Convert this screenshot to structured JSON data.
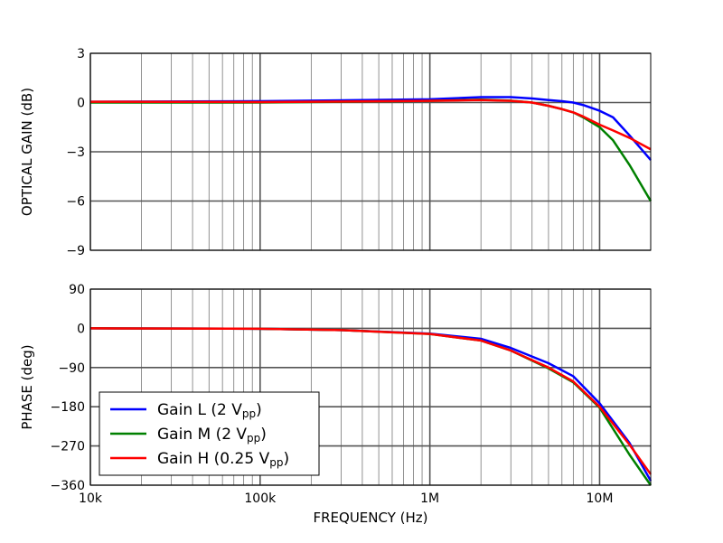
{
  "chart_data": [
    {
      "type": "line",
      "ylabel": "OPTICAL GAIN (dB)",
      "xscale": "log",
      "xlim": [
        10000,
        20000000
      ],
      "ylim": [
        -9,
        3
      ],
      "yticks": [
        3,
        0,
        -3,
        -6,
        -9
      ],
      "ytick_labels": [
        "3",
        "0",
        "−3",
        "−6",
        "−9"
      ],
      "grid": true,
      "x": [
        10000,
        100000,
        1000000,
        2000000,
        3000000,
        4000000,
        5000000,
        6000000,
        7000000,
        8000000,
        10000000,
        12000000,
        15000000,
        20000000
      ],
      "series": [
        {
          "name": "Gain L (2 Vpp)",
          "color": "#0000ff",
          "values": [
            0.05,
            0.08,
            0.2,
            0.33,
            0.33,
            0.25,
            0.15,
            0.08,
            0.0,
            -0.15,
            -0.5,
            -0.9,
            -2.0,
            -3.5
          ]
        },
        {
          "name": "Gain M (2 Vpp)",
          "color": "#008000",
          "values": [
            0.0,
            0.0,
            0.1,
            0.18,
            0.12,
            0.0,
            -0.2,
            -0.4,
            -0.6,
            -0.9,
            -1.5,
            -2.3,
            -3.8,
            -6.0
          ]
        },
        {
          "name": "Gain H (0.25 Vpp)",
          "color": "#ff0000",
          "values": [
            0.05,
            0.03,
            0.1,
            0.15,
            0.1,
            0.0,
            -0.2,
            -0.4,
            -0.6,
            -0.85,
            -1.35,
            -1.7,
            -2.15,
            -2.85
          ]
        }
      ]
    },
    {
      "type": "line",
      "xlabel": "FREQUENCY (Hz)",
      "ylabel": "PHASE (deg)",
      "xscale": "log",
      "xlim": [
        10000,
        20000000
      ],
      "ylim": [
        -360,
        90
      ],
      "yticks": [
        90,
        0,
        -90,
        -180,
        -270,
        -360
      ],
      "ytick_labels": [
        "90",
        "0",
        "−90",
        "−180",
        "−270",
        "−360"
      ],
      "xticks": [
        10000,
        100000,
        1000000,
        10000000
      ],
      "xtick_labels": [
        "10k",
        "100k",
        "1M",
        "10M"
      ],
      "grid": true,
      "legend": "lower-left",
      "x": [
        10000,
        100000,
        300000,
        1000000,
        2000000,
        3000000,
        5000000,
        7000000,
        10000000,
        15000000,
        20000000
      ],
      "series": [
        {
          "name": "Gain L (2 Vpp)",
          "color": "#0000ff",
          "values": [
            0,
            -1,
            -4,
            -12,
            -24,
            -45,
            -80,
            -110,
            -172,
            -263,
            -350
          ]
        },
        {
          "name": "Gain M (2 Vpp)",
          "color": "#008000",
          "values": [
            0,
            -1,
            -4,
            -13,
            -28,
            -51,
            -92,
            -124,
            -182,
            -290,
            -385
          ]
        },
        {
          "name": "Gain H (0.25 Vpp)",
          "color": "#ff0000",
          "values": [
            0,
            -1,
            -4,
            -13,
            -28,
            -51,
            -90,
            -122,
            -180,
            -267,
            -335
          ]
        }
      ]
    }
  ],
  "legend": [
    {
      "main": "Gain L (2 V",
      "sub": "pp",
      "close": ")"
    },
    {
      "main": "Gain M (2 V",
      "sub": "pp",
      "close": ")"
    },
    {
      "main": "Gain H (0.25 V",
      "sub": "pp",
      "close": ")"
    }
  ]
}
